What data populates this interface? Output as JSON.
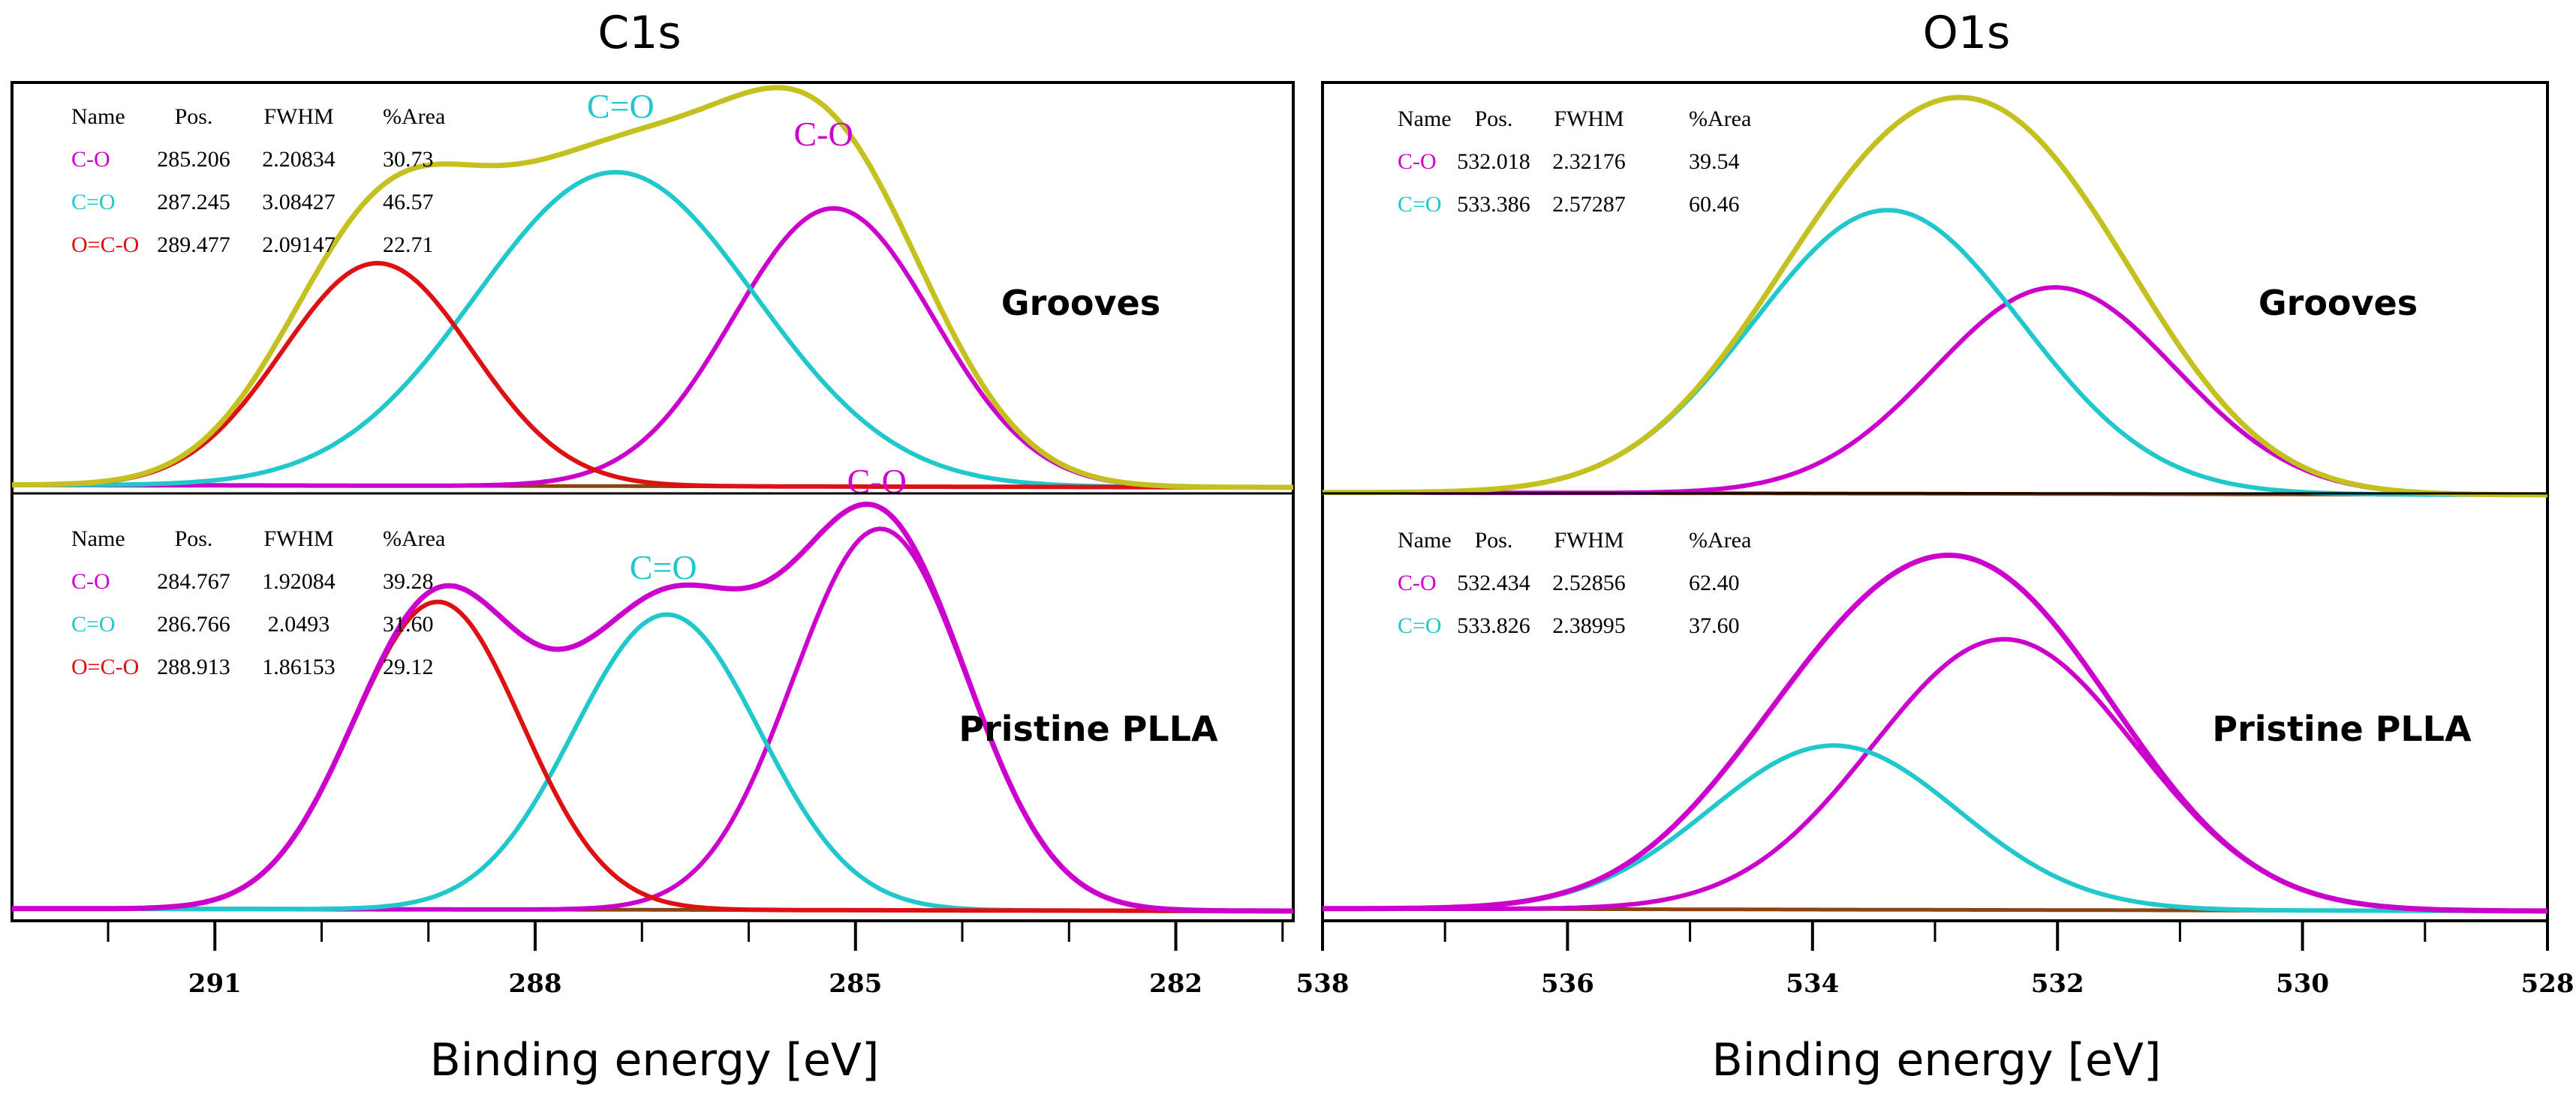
{
  "chart_data": [
    {
      "type": "line",
      "title": "C1s",
      "xlabel": "Binding energy [eV]",
      "x_ticks": [
        291,
        288,
        285,
        282
      ],
      "xlim": [
        292.9,
        280.9
      ],
      "colors": {
        "C-O": "#cc00cc",
        "C=O": "#20c8cc",
        "O=C-O": "#dd1111",
        "envelope": "#c4c020",
        "background": "#8b4513"
      },
      "table_headers": [
        "Name",
        "Pos.",
        "FWHM",
        "%Area"
      ],
      "panels": [
        {
          "sample": "Grooves",
          "envelope_color": "#c4c020",
          "peaks": [
            {
              "name": "C-O",
              "pos": "285.206",
              "fwhm": "2.20834",
              "area": "30.73",
              "center": 285.206,
              "height": 0.7,
              "width": 2.20834
            },
            {
              "name": "C=O",
              "pos": "287.245",
              "fwhm": "3.08427",
              "area": "46.57",
              "center": 287.245,
              "height": 0.79,
              "width": 3.08427
            },
            {
              "name": "O=C-O",
              "pos": "289.477",
              "fwhm": "2.09147",
              "area": "22.71",
              "center": 289.477,
              "height": 0.56,
              "width": 2.09147
            }
          ],
          "annotations": [
            {
              "text": "C=O",
              "color": "#20c8cc",
              "x": 287.2,
              "y": 0.93
            },
            {
              "text": "C-O",
              "color": "#cc00cc",
              "x": 285.3,
              "y": 0.86
            }
          ]
        },
        {
          "sample": "Pristine PLLA",
          "envelope_color": "#cc00cc",
          "peaks": [
            {
              "name": "C-O",
              "pos": "284.767",
              "fwhm": "1.92084",
              "area": "39.28",
              "center": 284.767,
              "height": 0.93,
              "width": 1.92084
            },
            {
              "name": "C=O",
              "pos": "286.766",
              "fwhm": "2.0493",
              "area": "31.60",
              "center": 286.766,
              "height": 0.72,
              "width": 2.0493
            },
            {
              "name": "O=C-O",
              "pos": "288.913",
              "fwhm": "1.86153",
              "area": "29.12",
              "center": 288.913,
              "height": 0.75,
              "width": 1.86153
            }
          ],
          "annotations": [
            {
              "text": "C=O",
              "color": "#20c8cc",
              "x": 286.8,
              "y": 0.81
            },
            {
              "text": "C-O",
              "color": "#cc00cc",
              "x": 284.8,
              "y": 1.02
            }
          ]
        }
      ]
    },
    {
      "type": "line",
      "title": "O1s",
      "xlabel": "Binding energy [eV]",
      "x_ticks": [
        538,
        536,
        534,
        532,
        530,
        528
      ],
      "xlim": [
        538,
        528
      ],
      "colors": {
        "C-O": "#cc00cc",
        "C=O": "#20c8cc",
        "envelope": "#c4c020",
        "background": "#8b4513"
      },
      "table_headers": [
        "Name",
        "Pos.",
        "FWHM",
        "%Area"
      ],
      "panels": [
        {
          "sample": "Grooves",
          "envelope_color": "#c4c020",
          "peaks": [
            {
              "name": "C-O",
              "pos": "532.018",
              "fwhm": "2.32176",
              "area": "39.54",
              "center": 532.018,
              "height": 0.51,
              "width": 2.32176
            },
            {
              "name": "C=O",
              "pos": "533.386",
              "fwhm": "2.57287",
              "area": "60.46",
              "center": 533.386,
              "height": 0.7,
              "width": 2.57287
            }
          ],
          "annotations": []
        },
        {
          "sample": "Pristine PLLA",
          "envelope_color": "#cc00cc",
          "peaks": [
            {
              "name": "C-O",
              "pos": "532.434",
              "fwhm": "2.52856",
              "area": "62.40",
              "center": 532.434,
              "height": 0.66,
              "width": 2.52856
            },
            {
              "name": "C=O",
              "pos": "533.826",
              "fwhm": "2.38995",
              "area": "37.60",
              "center": 533.826,
              "height": 0.4,
              "width": 2.38995
            }
          ],
          "annotations": []
        }
      ]
    }
  ]
}
